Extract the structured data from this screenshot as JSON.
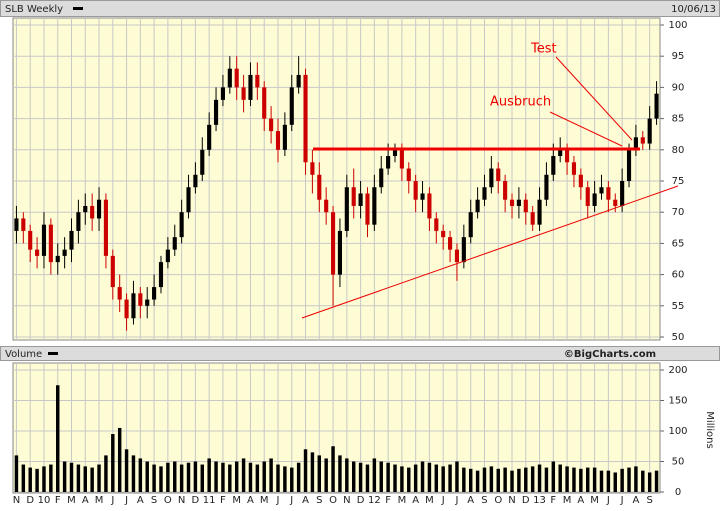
{
  "chart_data": [
    {
      "type": "candlestick",
      "title": "SLB Weekly",
      "date": "10/06/13",
      "copyright": "©BigCharts.com",
      "open": [
        67,
        69,
        67,
        64,
        63,
        68,
        62,
        63,
        64,
        67,
        70,
        71,
        69,
        72,
        63,
        58,
        56,
        53,
        57,
        55,
        56,
        58,
        62,
        64,
        66,
        70,
        74,
        76,
        80,
        84,
        88,
        90,
        93,
        90,
        88,
        92,
        90,
        85,
        83,
        80,
        84,
        90,
        92,
        78,
        76,
        72,
        70,
        60,
        67,
        74,
        71,
        73,
        68,
        74,
        77,
        79,
        80,
        77,
        75,
        72,
        73,
        69,
        67,
        66,
        64,
        62,
        66,
        70,
        72,
        74,
        77,
        75,
        72,
        71,
        72,
        70,
        68,
        72,
        76,
        79,
        80,
        78,
        76,
        74,
        71,
        73,
        74,
        72,
        71,
        75,
        80,
        82,
        81,
        85
      ],
      "high": [
        71,
        70,
        68,
        66,
        70,
        69,
        65,
        66,
        69,
        72,
        73,
        73,
        74,
        73,
        64,
        60,
        57,
        59,
        58,
        58,
        60,
        63,
        66,
        68,
        72,
        76,
        78,
        82,
        86,
        90,
        92,
        95,
        95,
        92,
        94,
        94,
        91,
        87,
        85,
        86,
        92,
        95,
        93,
        80,
        78,
        74,
        71,
        69,
        76,
        77,
        75,
        74,
        76,
        79,
        81,
        81,
        81,
        78,
        76,
        75,
        74,
        70,
        68,
        67,
        65,
        68,
        72,
        74,
        76,
        79,
        78,
        76,
        73,
        74,
        73,
        71,
        74,
        78,
        81,
        82,
        81,
        79,
        77,
        75,
        75,
        76,
        75,
        73,
        77,
        81,
        84,
        83,
        87,
        91
      ],
      "low": [
        65,
        65,
        62,
        61,
        61,
        60,
        60,
        61,
        62,
        65,
        68,
        67,
        67,
        61,
        56,
        54,
        51,
        52,
        53,
        53,
        55,
        57,
        61,
        63,
        65,
        69,
        73,
        75,
        79,
        83,
        87,
        89,
        88,
        86,
        87,
        88,
        83,
        81,
        78,
        79,
        83,
        89,
        76,
        73,
        70,
        68,
        55,
        58,
        66,
        69,
        69,
        66,
        67,
        73,
        76,
        78,
        75,
        73,
        70,
        70,
        67,
        65,
        64,
        62,
        59,
        61,
        65,
        69,
        71,
        73,
        73,
        70,
        69,
        69,
        68,
        67,
        67,
        71,
        75,
        78,
        76,
        74,
        72,
        69,
        70,
        72,
        70,
        70,
        70,
        74,
        79,
        80,
        80,
        84
      ],
      "close": [
        69,
        67,
        64,
        63,
        68,
        62,
        63,
        64,
        67,
        70,
        71,
        69,
        72,
        63,
        58,
        56,
        53,
        57,
        55,
        56,
        58,
        62,
        64,
        66,
        70,
        74,
        76,
        80,
        84,
        88,
        90,
        93,
        90,
        88,
        92,
        90,
        85,
        83,
        80,
        84,
        90,
        92,
        78,
        76,
        72,
        70,
        60,
        67,
        74,
        71,
        73,
        68,
        74,
        77,
        79,
        80,
        77,
        75,
        72,
        73,
        69,
        67,
        66,
        64,
        62,
        66,
        70,
        72,
        74,
        77,
        75,
        72,
        71,
        72,
        70,
        68,
        72,
        76,
        79,
        80,
        78,
        76,
        74,
        71,
        73,
        74,
        72,
        71,
        75,
        80,
        82,
        81,
        85,
        89
      ],
      "up_color": "#000000",
      "down_color": "#cc0000",
      "ylim": [
        50,
        100
      ],
      "yticks": [
        50,
        55,
        60,
        65,
        70,
        75,
        80,
        85,
        90,
        95,
        100
      ],
      "grid": true,
      "annotations": [
        "Test",
        "Ausbruch"
      ]
    },
    {
      "type": "bar",
      "title": "Volume",
      "y_label": "Millions",
      "color": "#000000",
      "categories": [
        "N",
        null,
        "D",
        null,
        "10",
        null,
        "F",
        null,
        "M",
        null,
        "A",
        null,
        "M",
        null,
        "J",
        null,
        "J",
        null,
        "A",
        null,
        "S",
        null,
        "O",
        null,
        "N",
        null,
        "D",
        null,
        "11",
        null,
        "F",
        null,
        "M",
        null,
        "A",
        null,
        "M",
        null,
        "J",
        null,
        "J",
        null,
        "A",
        null,
        "S",
        null,
        "O",
        null,
        "N",
        null,
        "D",
        null,
        "12",
        null,
        "F",
        null,
        "M",
        null,
        "A",
        null,
        "M",
        null,
        "J",
        null,
        "J",
        null,
        "A",
        null,
        "S",
        null,
        "O",
        null,
        "N",
        null,
        "D",
        null,
        "13",
        null,
        "F",
        null,
        "M",
        null,
        "A",
        null,
        "M",
        null,
        "J",
        null,
        "J",
        null,
        "A",
        null,
        "S",
        null
      ],
      "values": [
        60,
        45,
        40,
        38,
        42,
        45,
        175,
        50,
        48,
        45,
        42,
        40,
        45,
        60,
        95,
        105,
        70,
        60,
        55,
        50,
        45,
        42,
        48,
        50,
        45,
        48,
        50,
        45,
        55,
        50,
        48,
        45,
        50,
        55,
        48,
        45,
        50,
        55,
        45,
        42,
        40,
        48,
        70,
        65,
        60,
        55,
        75,
        60,
        55,
        50,
        48,
        45,
        55,
        50,
        48,
        45,
        42,
        40,
        45,
        50,
        48,
        45,
        42,
        45,
        50,
        40,
        38,
        35,
        40,
        42,
        38,
        40,
        35,
        38,
        40,
        42,
        45,
        40,
        50,
        45,
        42,
        40,
        38,
        40,
        40,
        35,
        35,
        32,
        38,
        40,
        42,
        35,
        32,
        35
      ],
      "ylim": [
        0,
        200
      ],
      "yticks": [
        0,
        50,
        100,
        150,
        200
      ],
      "grid": true
    }
  ]
}
